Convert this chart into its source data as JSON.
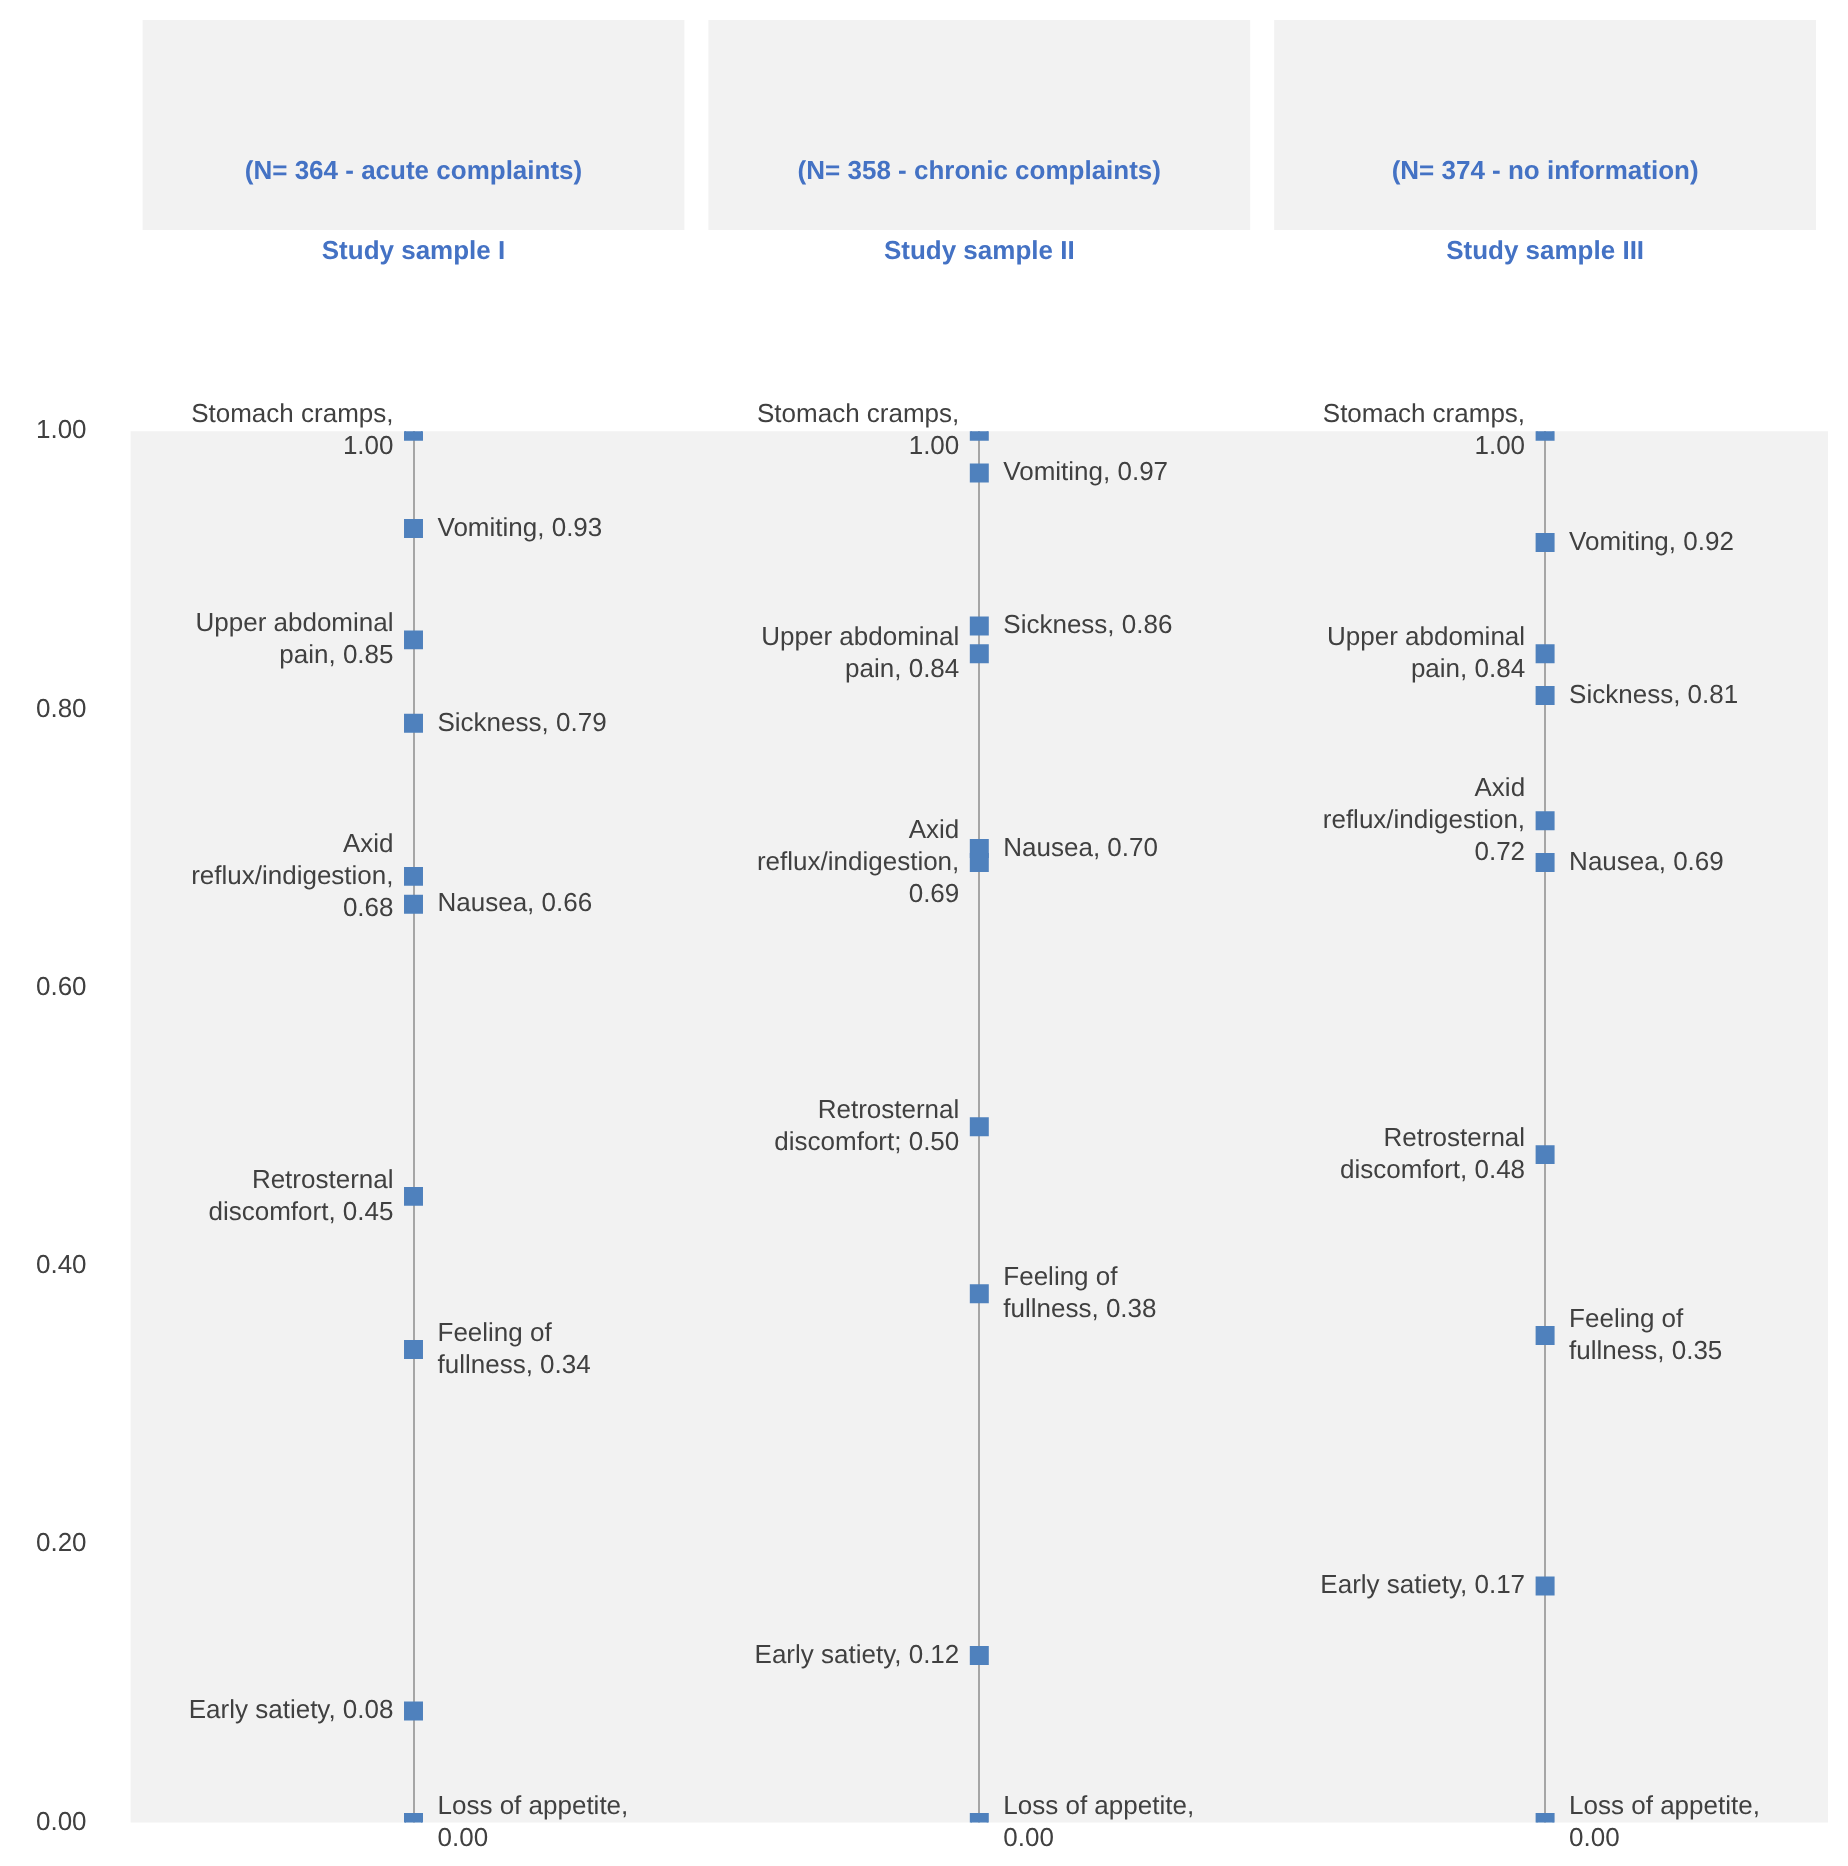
{
  "chart_data": {
    "type": "scatter",
    "categories": [
      "Study sample I",
      "Study sample II",
      "Study sample III"
    ],
    "annotations": [
      "(N= 364 - acute complaints)",
      "(N= 358 - chronic complaints)",
      "(N= 374 - no information)"
    ],
    "ylim": [
      0,
      1
    ],
    "yticks": [
      {
        "value": 0,
        "label": "0.00"
      },
      {
        "value": 0.2,
        "label": "0.20"
      },
      {
        "value": 0.4,
        "label": "0.40"
      },
      {
        "value": 0.6,
        "label": "0.60"
      },
      {
        "value": 0.8,
        "label": "0.80"
      },
      {
        "value": 1,
        "label": "1.00"
      }
    ],
    "grid": "x",
    "marker": "square",
    "series": [
      {
        "color": "#4f81bd",
        "x": [
          "Study sample I",
          "Study sample I",
          "Study sample I",
          "Study sample I",
          "Study sample I",
          "Study sample I",
          "Study sample I",
          "Study sample I",
          "Study sample I",
          "Study sample I"
        ],
        "values": [
          1.0,
          0.93,
          0.85,
          0.79,
          0.68,
          0.66,
          0.45,
          0.34,
          0.08,
          0.0
        ],
        "value_labels": [
          "Stomach cramps, 1.00",
          "Vomiting, 0.93",
          "Upper abdominal pain, 0.85",
          "Sickness, 0.79",
          "Axid reflux/indigestion, 0.68",
          "Nausea, 0.66",
          "Retrosternal discomfort, 0.45",
          "Feeling of fullness, 0.34",
          "Early satiety, 0.08",
          "Loss of appetite, 0.00"
        ]
      },
      {
        "color": "#4f81bd",
        "x": [
          "Study sample II",
          "Study sample II",
          "Study sample II",
          "Study sample II",
          "Study sample II",
          "Study sample II",
          "Study sample II",
          "Study sample II",
          "Study sample II",
          "Study sample II"
        ],
        "values": [
          1.0,
          0.97,
          0.84,
          0.86,
          0.69,
          0.7,
          0.5,
          0.38,
          0.12,
          0.0
        ],
        "value_labels": [
          "Stomach cramps, 1.00",
          "Vomiting, 0.97",
          "Upper abdominal pain, 0.84",
          "Sickness, 0.86",
          "Axid reflux/indigestion, 0.69",
          "Nausea, 0.70",
          "Retrosternal discomfort; 0.50",
          "Feeling of fullness, 0.38",
          "Early satiety, 0.12",
          "Loss of appetite, 0.00"
        ]
      },
      {
        "color": "#4f81bd",
        "x": [
          "Study sample III",
          "Study sample III",
          "Study sample III",
          "Study sample III",
          "Study sample III",
          "Study sample III",
          "Study sample III",
          "Study sample III",
          "Study sample III",
          "Study sample III"
        ],
        "values": [
          1.0,
          0.92,
          0.84,
          0.81,
          0.72,
          0.69,
          0.48,
          0.35,
          0.17,
          0.0
        ],
        "value_labels": [
          "Stomach cramps, 1.00",
          "Vomiting, 0.92",
          "Upper abdominal pain, 0.84",
          "Sickness, 0.81",
          "Axid reflux/indigestion, 0.72",
          "Nausea, 0.69",
          "Retrosternal discomfort, 0.48",
          "Feeling of fullness, 0.35",
          "Early satiety, 0.17",
          "Loss of appetite, 0.00"
        ]
      }
    ]
  }
}
